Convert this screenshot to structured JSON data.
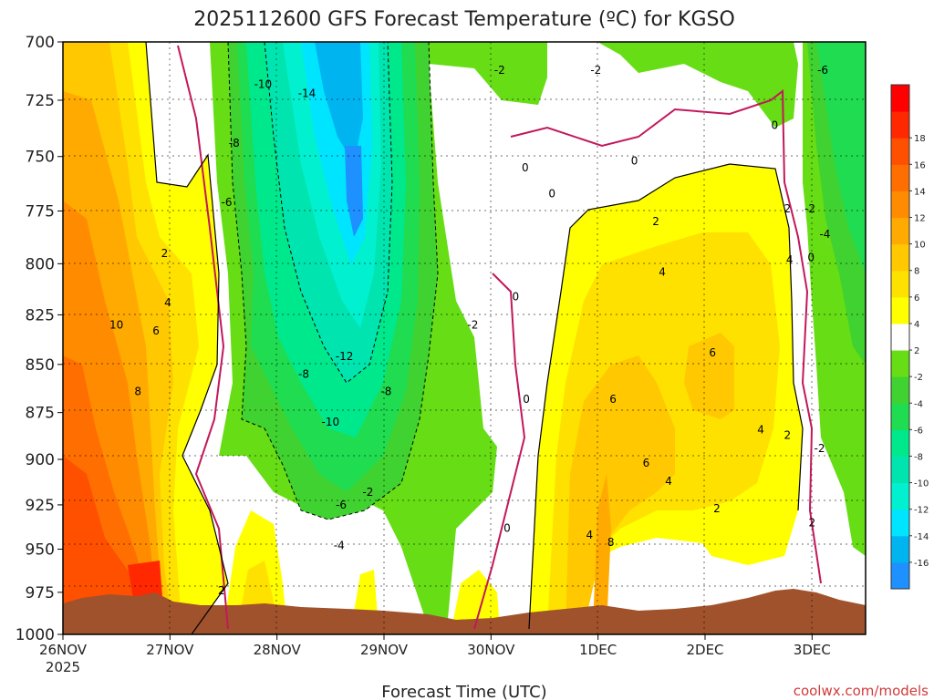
{
  "chart_data": {
    "type": "heatmap",
    "title": "2025112600 GFS Forecast Temperature (ºC) for KGSO",
    "xlabel": "Forecast Time (UTC)",
    "ylabel": "",
    "credit": "coolwx.com/models",
    "x_ticks": [
      "26NOV",
      "27NOV",
      "28NOV",
      "29NOV",
      "30NOV",
      "1DEC",
      "2DEC",
      "3DEC"
    ],
    "x_year": "2025",
    "x_range_days": [
      0,
      7.5
    ],
    "y_ticks": [
      700,
      725,
      750,
      775,
      800,
      825,
      850,
      875,
      900,
      925,
      950,
      975,
      1000
    ],
    "y_range": [
      700,
      1000
    ],
    "y_reversed": true,
    "grid": true,
    "colorbar": {
      "position": "right",
      "boundaries": [
        -18,
        -16,
        -14,
        -12,
        -10,
        -8,
        -6,
        -4,
        -2,
        2,
        4,
        6,
        8,
        10,
        12,
        14,
        16,
        18,
        20
      ],
      "labels": [
        "18",
        "16",
        "14",
        "12",
        "10",
        "8",
        "6",
        "4",
        "2",
        "-2",
        "-4",
        "-6",
        "-8",
        "-10",
        "-12",
        "-14",
        "-16"
      ],
      "colors": [
        "#1e90ff",
        "#00b4f0",
        "#00e5ff",
        "#00f0d0",
        "#00e5b0",
        "#00e88c",
        "#20dc50",
        "#40d230",
        "#66dd14",
        "#ffffff",
        "#ffff00",
        "#ffe100",
        "#ffc800",
        "#ffaa00",
        "#ff8c00",
        "#ff6e00",
        "#ff5000",
        "#ff2800",
        "#ff0000"
      ]
    },
    "contour_labels": [
      {
        "text": "-2",
        "x": 4.08,
        "p": 712
      },
      {
        "text": "-2",
        "x": 4.98,
        "p": 712
      },
      {
        "text": "-6",
        "x": 7.1,
        "p": 712
      },
      {
        "text": "-10",
        "x": 1.87,
        "p": 718
      },
      {
        "text": "-14",
        "x": 2.28,
        "p": 722
      },
      {
        "text": "0",
        "x": 6.65,
        "p": 736
      },
      {
        "text": "-8",
        "x": 1.6,
        "p": 744
      },
      {
        "text": "0",
        "x": 4.32,
        "p": 755
      },
      {
        "text": "0",
        "x": 5.34,
        "p": 752
      },
      {
        "text": "0",
        "x": 4.57,
        "p": 767
      },
      {
        "text": "-6",
        "x": 1.53,
        "p": 771
      },
      {
        "text": "2",
        "x": 6.77,
        "p": 774
      },
      {
        "text": "-2",
        "x": 6.98,
        "p": 774
      },
      {
        "text": "2",
        "x": 5.54,
        "p": 780
      },
      {
        "text": "-4",
        "x": 7.12,
        "p": 786
      },
      {
        "text": "2",
        "x": 0.95,
        "p": 795
      },
      {
        "text": "0",
        "x": 6.99,
        "p": 797
      },
      {
        "text": "4",
        "x": 6.79,
        "p": 798
      },
      {
        "text": "4",
        "x": 5.6,
        "p": 804
      },
      {
        "text": "0",
        "x": 4.23,
        "p": 816
      },
      {
        "text": "4",
        "x": 0.98,
        "p": 819
      },
      {
        "text": "-2",
        "x": 3.83,
        "p": 830
      },
      {
        "text": "10",
        "x": 0.5,
        "p": 830
      },
      {
        "text": "6",
        "x": 0.87,
        "p": 833
      },
      {
        "text": "-12",
        "x": 2.63,
        "p": 846
      },
      {
        "text": "6",
        "x": 6.07,
        "p": 844
      },
      {
        "text": "-8",
        "x": 2.25,
        "p": 855
      },
      {
        "text": "8",
        "x": 0.7,
        "p": 864
      },
      {
        "text": "-8",
        "x": 3.02,
        "p": 864
      },
      {
        "text": "0",
        "x": 4.33,
        "p": 868
      },
      {
        "text": "6",
        "x": 5.14,
        "p": 868
      },
      {
        "text": "-10",
        "x": 2.5,
        "p": 880
      },
      {
        "text": "4",
        "x": 6.52,
        "p": 884
      },
      {
        "text": "2",
        "x": 6.77,
        "p": 887
      },
      {
        "text": "-2",
        "x": 7.07,
        "p": 894
      },
      {
        "text": "6",
        "x": 5.45,
        "p": 902
      },
      {
        "text": "4",
        "x": 5.66,
        "p": 912
      },
      {
        "text": "-2",
        "x": 2.85,
        "p": 918
      },
      {
        "text": "-6",
        "x": 2.6,
        "p": 925
      },
      {
        "text": "2",
        "x": 6.11,
        "p": 927
      },
      {
        "text": "0",
        "x": 4.15,
        "p": 938
      },
      {
        "text": "2",
        "x": 7.0,
        "p": 935
      },
      {
        "text": "4",
        "x": 4.92,
        "p": 942
      },
      {
        "text": "8",
        "x": 5.12,
        "p": 946
      },
      {
        "text": "-4",
        "x": 2.58,
        "p": 948
      },
      {
        "text": "2",
        "x": 1.48,
        "p": 974
      }
    ]
  }
}
